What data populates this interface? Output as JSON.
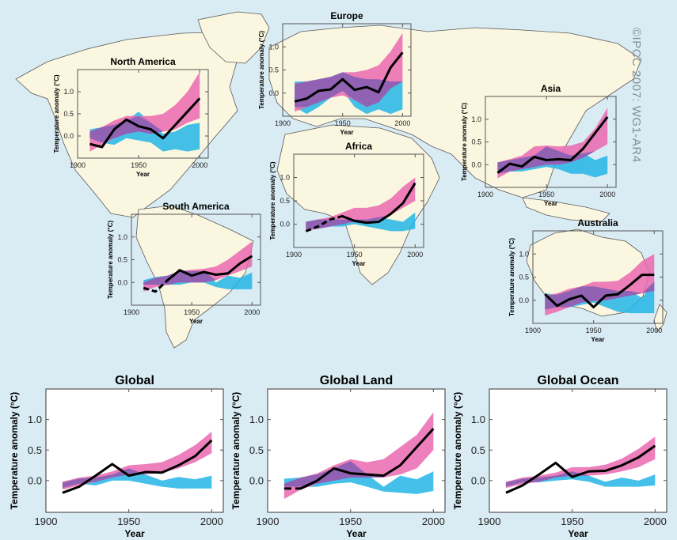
{
  "credit": "©IPCC  2007: WG1-AR4",
  "colors": {
    "ocean": "#d9ebf3",
    "land": "#fbf6df",
    "coast": "#5a5a5a",
    "natural_anthro": "#ea68b0",
    "natural_only": "#23b5e6",
    "overlap": "#8a5fb4",
    "observed": "#000000",
    "panel_bg_global": "#ffffff"
  },
  "chart_data": [
    {
      "type": "area",
      "panel": "north-america",
      "title": "North America",
      "xlabel": "Year",
      "ylabel": "Temperature anomaly (°C)",
      "xticks": [
        "1900",
        "1950",
        "2000"
      ],
      "yticks": [
        "0.0",
        "0.5",
        "1.0"
      ],
      "xlim": [
        1900,
        2007
      ],
      "ylim": [
        -0.5,
        1.5
      ],
      "x": [
        1910,
        1920,
        1930,
        1940,
        1950,
        1960,
        1970,
        1980,
        1990,
        2000
      ],
      "observed": [
        -0.18,
        -0.25,
        0.15,
        0.37,
        0.22,
        0.15,
        -0.05,
        0.25,
        0.55,
        0.85
      ],
      "observed_dashed_until": null,
      "natural_anthro": {
        "lower": [
          -0.35,
          -0.2,
          -0.05,
          0.05,
          0.1,
          0.05,
          0.1,
          0.15,
          0.3,
          0.4
        ],
        "upper": [
          0.1,
          0.2,
          0.35,
          0.45,
          0.45,
          0.45,
          0.5,
          0.7,
          1.0,
          1.45
        ]
      },
      "natural_only": {
        "lower": [
          -0.05,
          -0.15,
          -0.2,
          -0.05,
          -0.1,
          -0.15,
          -0.35,
          -0.3,
          -0.35,
          -0.3
        ],
        "upper": [
          0.15,
          0.2,
          0.25,
          0.35,
          0.55,
          0.3,
          0.05,
          0.1,
          0.25,
          0.3
        ]
      }
    },
    {
      "type": "area",
      "panel": "europe",
      "title": "Europe",
      "xlabel": "Year",
      "ylabel": "Temperature anomaly (°C)",
      "xticks": [
        "1900",
        "1950",
        "2000"
      ],
      "yticks": [
        "0.0",
        "0.5",
        "1.0"
      ],
      "xlim": [
        1900,
        2007
      ],
      "ylim": [
        -0.5,
        1.5
      ],
      "x": [
        1910,
        1920,
        1930,
        1940,
        1950,
        1960,
        1970,
        1980,
        1990,
        2000
      ],
      "observed": [
        -0.18,
        -0.12,
        0.05,
        0.08,
        0.3,
        0.07,
        0.13,
        0.02,
        0.55,
        0.88
      ],
      "observed_dashed_until": null,
      "natural_anthro": {
        "lower": [
          -0.4,
          -0.3,
          -0.2,
          -0.1,
          -0.05,
          -0.15,
          -0.3,
          -0.2,
          0.1,
          0.25
        ],
        "upper": [
          0.2,
          0.25,
          0.3,
          0.35,
          0.45,
          0.45,
          0.5,
          0.6,
          0.9,
          1.3
        ]
      },
      "natural_only": {
        "lower": [
          -0.3,
          -0.45,
          -0.3,
          -0.1,
          0.05,
          -0.3,
          -0.45,
          -0.35,
          -0.45,
          -0.35
        ],
        "upper": [
          0.25,
          0.25,
          0.3,
          0.35,
          0.45,
          0.35,
          0.3,
          0.3,
          0.25,
          0.25
        ]
      }
    },
    {
      "type": "area",
      "panel": "asia",
      "title": "Asia",
      "xlabel": "Year",
      "ylabel": "Temperature anomaly (°C)",
      "xticks": [
        "1900",
        "1950",
        "2000"
      ],
      "yticks": [
        "0.0",
        "0.5",
        "1.0"
      ],
      "xlim": [
        1900,
        2007
      ],
      "ylim": [
        -0.5,
        1.5
      ],
      "x": [
        1910,
        1920,
        1930,
        1940,
        1950,
        1960,
        1970,
        1980,
        1990,
        2000
      ],
      "observed": [
        -0.18,
        0.02,
        -0.04,
        0.17,
        0.1,
        0.12,
        0.1,
        0.35,
        0.7,
        1.05
      ],
      "observed_dashed_until": null,
      "natural_anthro": {
        "lower": [
          -0.3,
          -0.15,
          -0.1,
          -0.05,
          0.0,
          0.0,
          0.05,
          0.15,
          0.3,
          0.45
        ],
        "upper": [
          0.05,
          0.12,
          0.2,
          0.4,
          0.42,
          0.4,
          0.42,
          0.5,
          0.8,
          1.25
        ]
      },
      "natural_only": {
        "lower": [
          -0.2,
          -0.15,
          -0.15,
          -0.1,
          -0.05,
          -0.1,
          -0.2,
          -0.2,
          -0.28,
          -0.2
        ],
        "upper": [
          0.05,
          0.1,
          0.15,
          0.2,
          0.4,
          0.3,
          0.2,
          0.25,
          0.1,
          0.2
        ]
      }
    },
    {
      "type": "area",
      "panel": "africa",
      "title": "Africa",
      "xlabel": "Year",
      "ylabel": "Temperature anomaly (°C)",
      "xticks": [
        "1900",
        "1950",
        "2000"
      ],
      "yticks": [
        "0.0",
        "0.5",
        "1.0"
      ],
      "xlim": [
        1900,
        2007
      ],
      "ylim": [
        -0.5,
        1.5
      ],
      "x": [
        1910,
        1920,
        1930,
        1940,
        1950,
        1960,
        1970,
        1980,
        1990,
        2000
      ],
      "observed": [
        -0.15,
        -0.05,
        0.1,
        0.17,
        0.07,
        0.03,
        0.05,
        0.22,
        0.45,
        0.88
      ],
      "observed_dashed_until": 1945,
      "natural_anthro": {
        "lower": [
          -0.15,
          -0.1,
          -0.05,
          0.0,
          0.05,
          0.05,
          0.1,
          0.2,
          0.35,
          0.5
        ],
        "upper": [
          0.05,
          0.1,
          0.15,
          0.25,
          0.35,
          0.35,
          0.4,
          0.55,
          0.8,
          1.0
        ]
      },
      "natural_only": {
        "lower": [
          -0.1,
          -0.1,
          -0.05,
          -0.05,
          0.0,
          -0.05,
          -0.1,
          -0.15,
          -0.15,
          -0.1
        ],
        "upper": [
          0.05,
          0.1,
          0.1,
          0.1,
          0.1,
          0.1,
          0.15,
          0.1,
          0.05,
          0.25
        ]
      }
    },
    {
      "type": "area",
      "panel": "south-america",
      "title": "South America",
      "xlabel": "Year",
      "ylabel": "Temperature anomaly (°C)",
      "xticks": [
        "1900",
        "1950",
        "2000"
      ],
      "yticks": [
        "0.0",
        "0.5",
        "1.0"
      ],
      "xlim": [
        1900,
        2007
      ],
      "ylim": [
        -0.5,
        1.5
      ],
      "x": [
        1910,
        1920,
        1930,
        1940,
        1950,
        1960,
        1970,
        1980,
        1990,
        2000
      ],
      "observed": [
        -0.12,
        -0.2,
        0.05,
        0.27,
        0.15,
        0.23,
        0.17,
        0.2,
        0.42,
        0.58
      ],
      "observed_dashed_until": 1935,
      "natural_anthro": {
        "lower": [
          -0.2,
          -0.1,
          -0.05,
          0.0,
          0.0,
          0.0,
          0.05,
          0.15,
          0.25,
          0.35
        ],
        "upper": [
          0.0,
          0.1,
          0.15,
          0.25,
          0.28,
          0.3,
          0.35,
          0.5,
          0.7,
          0.9
        ]
      },
      "natural_only": {
        "lower": [
          -0.05,
          -0.05,
          -0.05,
          -0.05,
          0.0,
          0.0,
          -0.1,
          -0.15,
          -0.15,
          -0.15
        ],
        "upper": [
          0.05,
          0.12,
          0.15,
          0.25,
          0.25,
          0.25,
          0.0,
          0.15,
          0.1,
          0.22
        ]
      }
    },
    {
      "type": "area",
      "panel": "australia",
      "title": "Australia",
      "xlabel": "Year",
      "ylabel": "Temperature anomaly (°C)",
      "xticks": [
        "1900",
        "1950",
        "2000"
      ],
      "yticks": [
        "0.0",
        "0.5",
        "1.0"
      ],
      "xlim": [
        1900,
        2007
      ],
      "ylim": [
        -0.5,
        1.5
      ],
      "x": [
        1910,
        1920,
        1930,
        1940,
        1950,
        1960,
        1970,
        1980,
        1990,
        2000
      ],
      "observed": [
        0.13,
        -0.12,
        0.02,
        0.1,
        -0.15,
        0.1,
        0.13,
        0.33,
        0.55,
        0.55
      ],
      "observed_dashed_until": null,
      "natural_anthro": {
        "lower": [
          -0.33,
          -0.25,
          -0.15,
          -0.05,
          -0.02,
          0.0,
          0.05,
          0.1,
          0.15,
          0.2
        ],
        "upper": [
          0.1,
          0.15,
          0.25,
          0.3,
          0.4,
          0.4,
          0.42,
          0.6,
          0.85,
          1.0
        ]
      },
      "natural_only": {
        "lower": [
          -0.2,
          -0.15,
          -0.15,
          -0.1,
          -0.05,
          -0.15,
          -0.25,
          -0.28,
          -0.28,
          -0.28
        ],
        "upper": [
          0.15,
          0.12,
          0.2,
          0.3,
          0.3,
          0.25,
          0.2,
          0.2,
          0.05,
          0.4
        ]
      }
    },
    {
      "type": "area",
      "panel": "global",
      "title": "Global",
      "xlabel": "Year",
      "ylabel": "Temperature anomaly (°C)",
      "xticks": [
        "1900",
        "1950",
        "2000"
      ],
      "yticks": [
        "0.0",
        "0.5",
        "1.0"
      ],
      "xlim": [
        1900,
        2007
      ],
      "ylim": [
        -0.52,
        1.5
      ],
      "x": [
        1910,
        1920,
        1930,
        1940,
        1950,
        1960,
        1970,
        1980,
        1990,
        2000
      ],
      "observed": [
        -0.2,
        -0.1,
        0.08,
        0.27,
        0.08,
        0.14,
        0.13,
        0.25,
        0.4,
        0.66
      ],
      "observed_dashed_until": null,
      "natural_anthro": {
        "lower": [
          -0.15,
          -0.08,
          -0.02,
          0.05,
          0.1,
          0.1,
          0.13,
          0.2,
          0.3,
          0.45
        ],
        "upper": [
          -0.02,
          0.05,
          0.08,
          0.15,
          0.25,
          0.27,
          0.3,
          0.42,
          0.58,
          0.8
        ]
      },
      "natural_only": {
        "lower": [
          -0.12,
          -0.05,
          -0.08,
          0.0,
          0.0,
          -0.05,
          -0.1,
          -0.13,
          -0.13,
          -0.13
        ],
        "upper": [
          -0.03,
          0.03,
          0.05,
          0.1,
          0.2,
          0.1,
          0.0,
          0.06,
          0.02,
          0.08
        ]
      }
    },
    {
      "type": "area",
      "panel": "global-land",
      "title": "Global Land",
      "xlabel": "Year",
      "ylabel": "Temperature anomaly (°C)",
      "xticks": [
        "1900",
        "1950",
        "2000"
      ],
      "yticks": [
        "0.0",
        "0.5",
        "1.0"
      ],
      "xlim": [
        1900,
        2007
      ],
      "ylim": [
        -0.52,
        1.5
      ],
      "x": [
        1910,
        1920,
        1930,
        1940,
        1950,
        1960,
        1970,
        1980,
        1990,
        2000
      ],
      "observed": [
        -0.13,
        -0.13,
        0.0,
        0.2,
        0.12,
        0.1,
        0.08,
        0.25,
        0.55,
        0.85
      ],
      "observed_dashed_until": 1925,
      "natural_anthro": {
        "lower": [
          -0.3,
          -0.15,
          -0.05,
          0.0,
          0.05,
          0.05,
          0.05,
          0.1,
          0.2,
          0.5
        ],
        "upper": [
          -0.05,
          0.05,
          0.12,
          0.25,
          0.35,
          0.3,
          0.35,
          0.55,
          0.75,
          1.12
        ]
      },
      "natural_only": {
        "lower": [
          -0.1,
          -0.1,
          -0.1,
          -0.05,
          -0.03,
          -0.1,
          -0.18,
          -0.2,
          -0.22,
          -0.17
        ],
        "upper": [
          0.03,
          0.05,
          0.1,
          0.2,
          0.32,
          0.1,
          -0.1,
          0.08,
          0.02,
          0.15
        ]
      }
    },
    {
      "type": "area",
      "panel": "global-ocean",
      "title": "Global Ocean",
      "xlabel": "Year",
      "ylabel": "Temperature anomaly (°C)",
      "xticks": [
        "1900",
        "1950",
        "2000"
      ],
      "yticks": [
        "0.0",
        "0.5",
        "1.0"
      ],
      "xlim": [
        1900,
        2007
      ],
      "ylim": [
        -0.52,
        1.5
      ],
      "x": [
        1910,
        1920,
        1930,
        1940,
        1950,
        1960,
        1970,
        1980,
        1990,
        2000
      ],
      "observed": [
        -0.2,
        -0.08,
        0.1,
        0.29,
        0.06,
        0.15,
        0.16,
        0.25,
        0.38,
        0.57
      ],
      "observed_dashed_until": null,
      "natural_anthro": {
        "lower": [
          -0.12,
          -0.06,
          -0.02,
          0.05,
          0.08,
          0.08,
          0.1,
          0.15,
          0.22,
          0.35
        ],
        "upper": [
          -0.02,
          0.05,
          0.08,
          0.13,
          0.22,
          0.22,
          0.26,
          0.36,
          0.52,
          0.72
        ]
      },
      "natural_only": {
        "lower": [
          -0.1,
          -0.03,
          -0.03,
          0.0,
          0.02,
          -0.02,
          -0.1,
          -0.1,
          -0.1,
          -0.08
        ],
        "upper": [
          -0.03,
          0.03,
          0.05,
          0.08,
          0.15,
          0.08,
          -0.02,
          0.05,
          0.0,
          0.1
        ]
      }
    }
  ]
}
